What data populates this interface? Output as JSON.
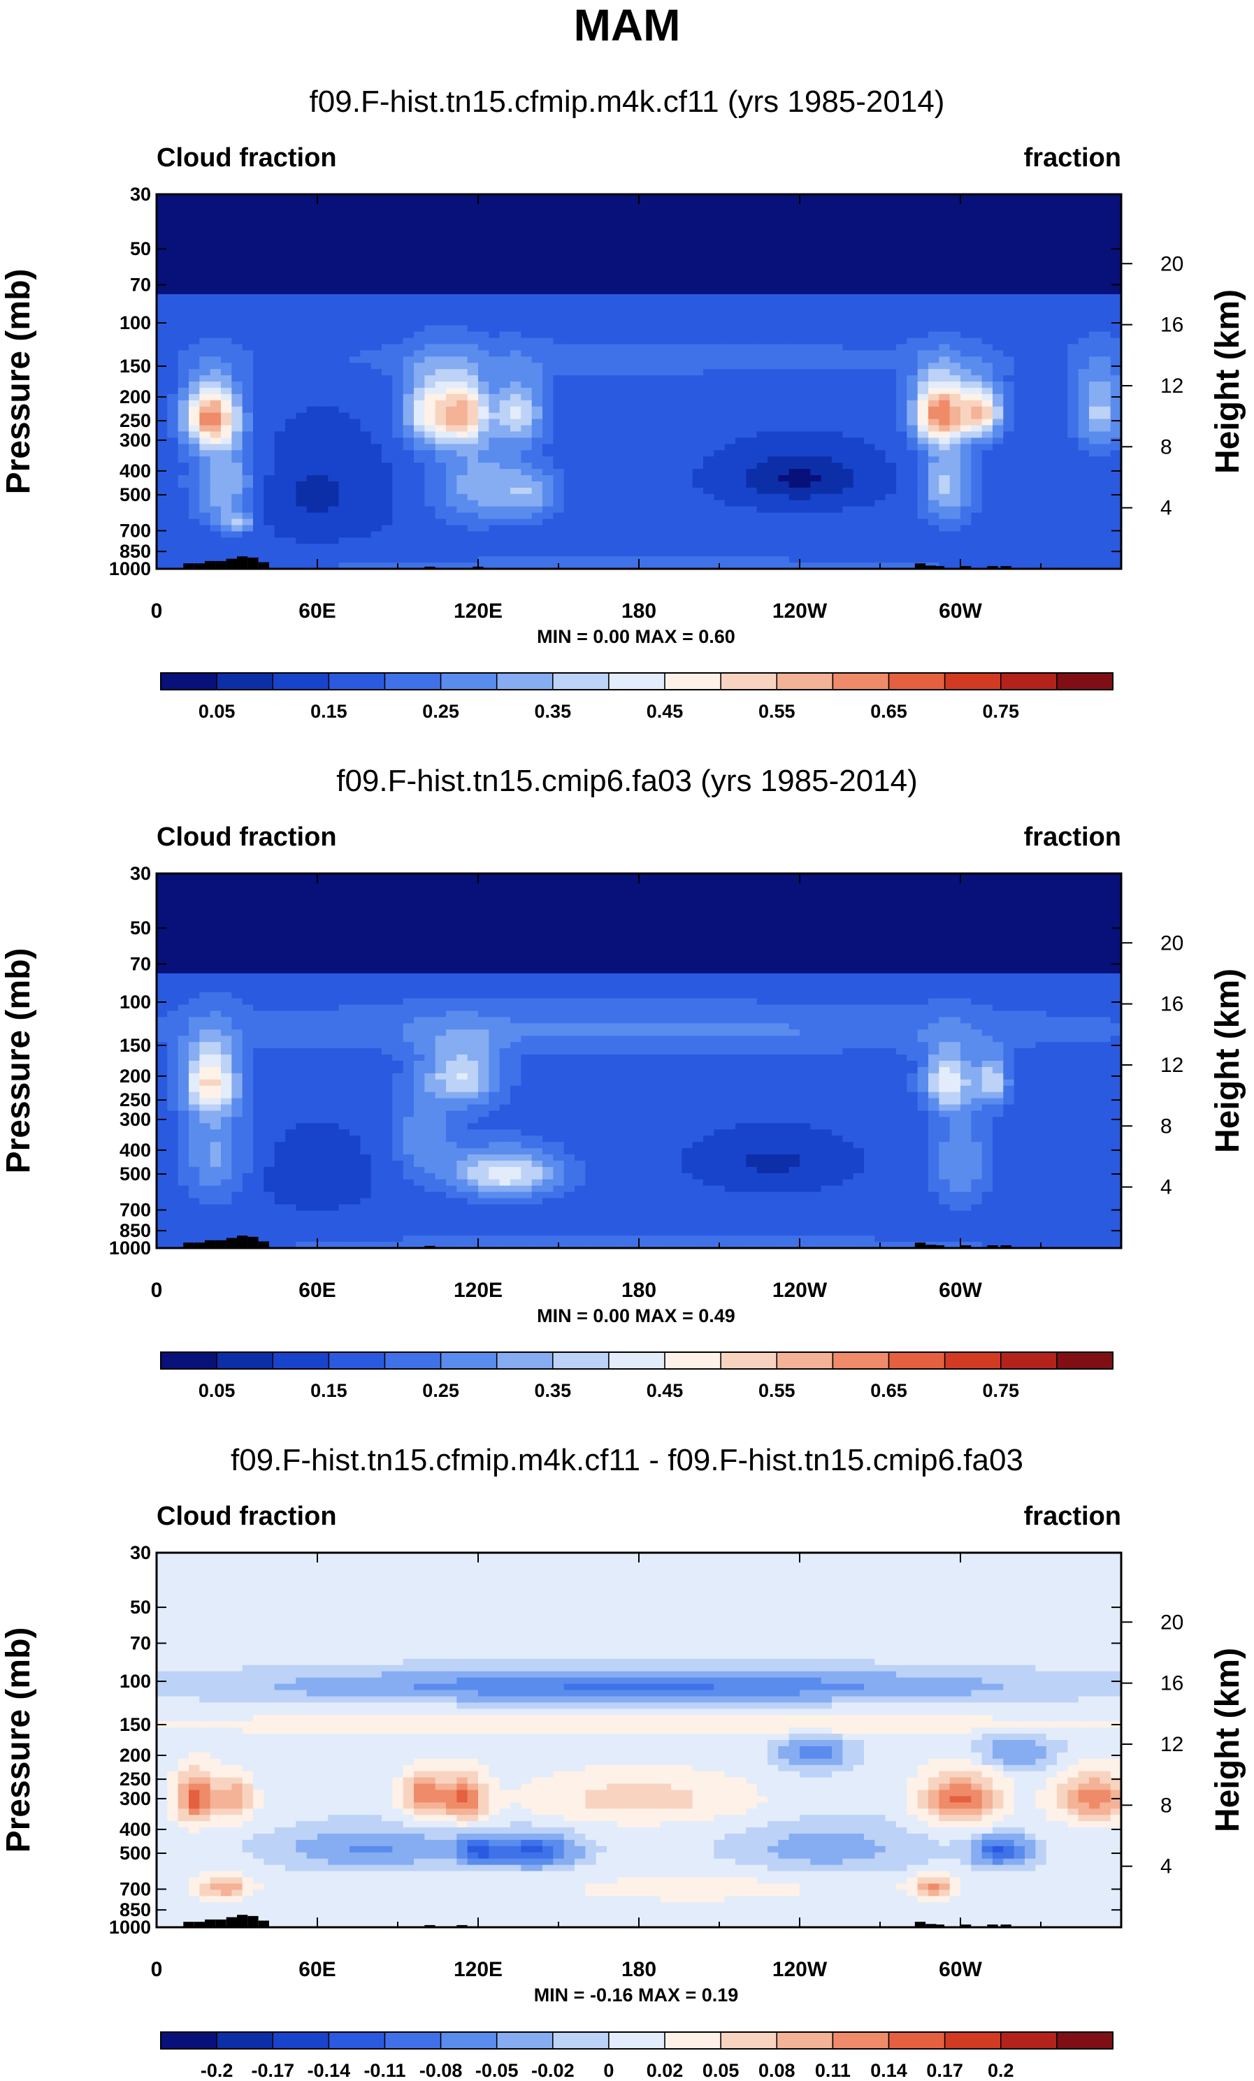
{
  "page_title": "MAM",
  "colormaps": {
    "seq": [
      "#08107a",
      "#0c2fa8",
      "#1844cc",
      "#2a5ae0",
      "#3f72e8",
      "#5a8cee",
      "#86acf2",
      "#bcd2f6",
      "#e3ecfa",
      "#fdf1e8",
      "#f8d4c0",
      "#f4b296",
      "#ef8b68",
      "#e5603f",
      "#d33a22",
      "#b4231b",
      "#7f0f14"
    ],
    "div": [
      "#08107a",
      "#0c2fa8",
      "#1844cc",
      "#2a5ae0",
      "#3f72e8",
      "#5a8cee",
      "#86acf2",
      "#bcd2f6",
      "#e3ecfa",
      "#fdf1e8",
      "#f8d4c0",
      "#f4b296",
      "#ef8b68",
      "#e5603f",
      "#d33a22",
      "#b4231b",
      "#7f0f14"
    ]
  },
  "chart_data": [
    {
      "type": "heatmap",
      "title": "f09.F-hist.tn15.cfmip.m4k.cf11 (yrs 1985-2014)",
      "left_label": "Cloud fraction",
      "right_label": "fraction",
      "ylabel": "Pressure (mb)",
      "ylabel_right": "Height (km)",
      "x_ticks": [
        "0",
        "60E",
        "120E",
        "180",
        "120W",
        "60W"
      ],
      "x_tick_lon": [
        0,
        60,
        120,
        180,
        240,
        300
      ],
      "xlim": [
        0,
        360
      ],
      "y_ticks": [
        "30",
        "50",
        "70",
        "100",
        "150",
        "200",
        "250",
        "300",
        "400",
        "500",
        "700",
        "850",
        "1000"
      ],
      "y_tick_values": [
        30,
        50,
        70,
        100,
        150,
        200,
        250,
        300,
        400,
        500,
        700,
        850,
        1000
      ],
      "ylim": [
        30,
        1000
      ],
      "height_ticks": [
        "20",
        "16",
        "12",
        "8",
        "4"
      ],
      "height_km": [
        20,
        16,
        12,
        8,
        4
      ],
      "minmax_text": "MIN =   0.00   MAX =   0.60",
      "min": 0.0,
      "max": 0.6,
      "colorbar_labels": [
        "0.05",
        "0.15",
        "0.25",
        "0.35",
        "0.45",
        "0.55",
        "0.65",
        "0.75"
      ],
      "colorbar_levels": [
        0.05,
        0.1,
        0.15,
        0.2,
        0.25,
        0.3,
        0.35,
        0.4,
        0.45,
        0.5,
        0.55,
        0.6,
        0.65,
        0.7,
        0.75,
        0.8
      ],
      "colormap": "seq",
      "field": {
        "base": 0.16,
        "blobs": [
          {
            "lon": 20,
            "p": 240,
            "a": 0.42,
            "wl": 10,
            "wp": 70
          },
          {
            "lon": 25,
            "p": 450,
            "a": 0.2,
            "wl": 12,
            "wp": 200
          },
          {
            "lon": 30,
            "p": 650,
            "a": 0.18,
            "wl": 6,
            "wp": 60
          },
          {
            "lon": 102,
            "p": 230,
            "a": 0.3,
            "wl": 10,
            "wp": 80
          },
          {
            "lon": 115,
            "p": 230,
            "a": 0.33,
            "wl": 8,
            "wp": 70
          },
          {
            "lon": 135,
            "p": 230,
            "a": 0.22,
            "wl": 10,
            "wp": 70
          },
          {
            "lon": 120,
            "p": 450,
            "a": 0.16,
            "wl": 18,
            "wp": 200
          },
          {
            "lon": 140,
            "p": 500,
            "a": 0.14,
            "wl": 12,
            "wp": 120
          },
          {
            "lon": 292,
            "p": 230,
            "a": 0.42,
            "wl": 10,
            "wp": 70
          },
          {
            "lon": 308,
            "p": 230,
            "a": 0.35,
            "wl": 8,
            "wp": 60
          },
          {
            "lon": 295,
            "p": 450,
            "a": 0.2,
            "wl": 10,
            "wp": 200
          },
          {
            "lon": 352,
            "p": 230,
            "a": 0.2,
            "wl": 10,
            "wp": 90
          },
          {
            "lon": 240,
            "p": 430,
            "a": -0.12,
            "wl": 25,
            "wp": 100
          },
          {
            "lon": 60,
            "p": 500,
            "a": -0.07,
            "wl": 25,
            "wp": 200
          },
          {
            "lon": 180,
            "p": 950,
            "a": 0.07,
            "wl": 180,
            "wp": 50
          },
          {
            "lon": 180,
            "p": 140,
            "a": 0.06,
            "wl": 180,
            "wp": 30
          }
        ]
      },
      "topography": [
        [
          10,
          950
        ],
        [
          14,
          950
        ],
        [
          18,
          930
        ],
        [
          22,
          930
        ],
        [
          26,
          910
        ],
        [
          30,
          890
        ],
        [
          34,
          900
        ],
        [
          38,
          940
        ],
        [
          100,
          980
        ],
        [
          118,
          980
        ],
        [
          283,
          950
        ],
        [
          287,
          970
        ],
        [
          290,
          975
        ],
        [
          300,
          975
        ],
        [
          310,
          975
        ],
        [
          315,
          975
        ]
      ]
    },
    {
      "type": "heatmap",
      "title": "f09.F-hist.tn15.cmip6.fa03 (yrs 1985-2014)",
      "left_label": "Cloud fraction",
      "right_label": "fraction",
      "ylabel": "Pressure (mb)",
      "ylabel_right": "Height (km)",
      "x_ticks": [
        "0",
        "60E",
        "120E",
        "180",
        "120W",
        "60W"
      ],
      "x_tick_lon": [
        0,
        60,
        120,
        180,
        240,
        300
      ],
      "xlim": [
        0,
        360
      ],
      "y_ticks": [
        "30",
        "50",
        "70",
        "100",
        "150",
        "200",
        "250",
        "300",
        "400",
        "500",
        "700",
        "850",
        "1000"
      ],
      "y_tick_values": [
        30,
        50,
        70,
        100,
        150,
        200,
        250,
        300,
        400,
        500,
        700,
        850,
        1000
      ],
      "ylim": [
        30,
        1000
      ],
      "height_ticks": [
        "20",
        "16",
        "12",
        "8",
        "4"
      ],
      "height_km": [
        20,
        16,
        12,
        8,
        4
      ],
      "minmax_text": "MIN =   0.00   MAX =   0.49",
      "min": 0.0,
      "max": 0.49,
      "colorbar_labels": [
        "0.05",
        "0.15",
        "0.25",
        "0.35",
        "0.45",
        "0.55",
        "0.65",
        "0.75"
      ],
      "colorbar_levels": [
        0.05,
        0.1,
        0.15,
        0.2,
        0.25,
        0.3,
        0.35,
        0.4,
        0.45,
        0.5,
        0.55,
        0.6,
        0.65,
        0.7,
        0.75,
        0.8
      ],
      "colormap": "seq",
      "field": {
        "base": 0.17,
        "blobs": [
          {
            "lon": 20,
            "p": 210,
            "a": 0.3,
            "wl": 10,
            "wp": 70
          },
          {
            "lon": 22,
            "p": 420,
            "a": 0.14,
            "wl": 12,
            "wp": 200
          },
          {
            "lon": 115,
            "p": 200,
            "a": 0.22,
            "wl": 14,
            "wp": 60
          },
          {
            "lon": 130,
            "p": 500,
            "a": 0.27,
            "wl": 20,
            "wp": 110
          },
          {
            "lon": 100,
            "p": 350,
            "a": 0.12,
            "wl": 12,
            "wp": 150
          },
          {
            "lon": 295,
            "p": 210,
            "a": 0.25,
            "wl": 9,
            "wp": 60
          },
          {
            "lon": 312,
            "p": 210,
            "a": 0.22,
            "wl": 6,
            "wp": 50
          },
          {
            "lon": 300,
            "p": 450,
            "a": 0.13,
            "wl": 10,
            "wp": 200
          },
          {
            "lon": 230,
            "p": 450,
            "a": -0.08,
            "wl": 30,
            "wp": 120
          },
          {
            "lon": 60,
            "p": 500,
            "a": -0.05,
            "wl": 25,
            "wp": 200
          },
          {
            "lon": 180,
            "p": 950,
            "a": 0.06,
            "wl": 180,
            "wp": 50
          },
          {
            "lon": 180,
            "p": 130,
            "a": 0.09,
            "wl": 180,
            "wp": 30
          }
        ]
      },
      "topography": [
        [
          10,
          950
        ],
        [
          14,
          950
        ],
        [
          18,
          930
        ],
        [
          22,
          930
        ],
        [
          26,
          910
        ],
        [
          30,
          890
        ],
        [
          34,
          900
        ],
        [
          38,
          940
        ],
        [
          100,
          980
        ],
        [
          283,
          950
        ],
        [
          287,
          970
        ],
        [
          290,
          975
        ],
        [
          300,
          975
        ],
        [
          310,
          975
        ],
        [
          315,
          975
        ]
      ]
    },
    {
      "type": "heatmap",
      "title": "f09.F-hist.tn15.cfmip.m4k.cf11 - f09.F-hist.tn15.cmip6.fa03",
      "left_label": "Cloud fraction",
      "right_label": "fraction",
      "ylabel": "Pressure (mb)",
      "ylabel_right": "Height (km)",
      "x_ticks": [
        "0",
        "60E",
        "120E",
        "180",
        "120W",
        "60W"
      ],
      "x_tick_lon": [
        0,
        60,
        120,
        180,
        240,
        300
      ],
      "xlim": [
        0,
        360
      ],
      "y_ticks": [
        "30",
        "50",
        "70",
        "100",
        "150",
        "200",
        "250",
        "300",
        "400",
        "500",
        "700",
        "850",
        "1000"
      ],
      "y_tick_values": [
        30,
        50,
        70,
        100,
        150,
        200,
        250,
        300,
        400,
        500,
        700,
        850,
        1000
      ],
      "ylim": [
        30,
        1000
      ],
      "height_ticks": [
        "20",
        "16",
        "12",
        "8",
        "4"
      ],
      "height_km": [
        20,
        16,
        12,
        8,
        4
      ],
      "minmax_text": "MIN =  -0.16   MAX =   0.19",
      "min": -0.16,
      "max": 0.19,
      "colorbar_labels": [
        "-0.2",
        "-0.17",
        "-0.14",
        "-0.11",
        "-0.08",
        "-0.05",
        "-0.02",
        "0",
        "0.02",
        "0.05",
        "0.08",
        "0.11",
        "0.14",
        "0.17",
        "0.2"
      ],
      "colorbar_levels": [
        -0.2,
        -0.17,
        -0.14,
        -0.11,
        -0.08,
        -0.05,
        -0.02,
        0,
        0.02,
        0.05,
        0.08,
        0.11,
        0.14,
        0.17,
        0.2
      ],
      "colormap": "div",
      "field": {
        "base": 0.005,
        "blobs": [
          {
            "lon": 180,
            "p": 105,
            "a": -0.09,
            "wl": 120,
            "wp": 14
          },
          {
            "lon": 180,
            "p": 150,
            "a": 0.04,
            "wl": 180,
            "wp": 15
          },
          {
            "lon": 15,
            "p": 300,
            "a": 0.15,
            "wl": 8,
            "wp": 70
          },
          {
            "lon": 30,
            "p": 300,
            "a": 0.1,
            "wl": 6,
            "wp": 60
          },
          {
            "lon": 100,
            "p": 290,
            "a": 0.13,
            "wl": 8,
            "wp": 60
          },
          {
            "lon": 115,
            "p": 300,
            "a": 0.14,
            "wl": 8,
            "wp": 60
          },
          {
            "lon": 180,
            "p": 300,
            "a": 0.06,
            "wl": 40,
            "wp": 70
          },
          {
            "lon": 300,
            "p": 300,
            "a": 0.14,
            "wl": 14,
            "wp": 70
          },
          {
            "lon": 350,
            "p": 300,
            "a": 0.12,
            "wl": 14,
            "wp": 70
          },
          {
            "lon": 80,
            "p": 480,
            "a": -0.06,
            "wl": 30,
            "wp": 80
          },
          {
            "lon": 140,
            "p": 490,
            "a": -0.12,
            "wl": 15,
            "wp": 70
          },
          {
            "lon": 120,
            "p": 490,
            "a": -0.1,
            "wl": 8,
            "wp": 60
          },
          {
            "lon": 315,
            "p": 490,
            "a": -0.12,
            "wl": 10,
            "wp": 60
          },
          {
            "lon": 250,
            "p": 480,
            "a": -0.04,
            "wl": 30,
            "wp": 100
          },
          {
            "lon": 25,
            "p": 690,
            "a": 0.1,
            "wl": 10,
            "wp": 70
          },
          {
            "lon": 290,
            "p": 690,
            "a": 0.11,
            "wl": 8,
            "wp": 70
          },
          {
            "lon": 200,
            "p": 700,
            "a": 0.025,
            "wl": 60,
            "wp": 100
          },
          {
            "lon": 245,
            "p": 195,
            "a": -0.07,
            "wl": 12,
            "wp": 30
          },
          {
            "lon": 320,
            "p": 195,
            "a": -0.05,
            "wl": 15,
            "wp": 30
          }
        ]
      },
      "topography": [
        [
          10,
          950
        ],
        [
          14,
          950
        ],
        [
          18,
          930
        ],
        [
          22,
          930
        ],
        [
          26,
          910
        ],
        [
          30,
          890
        ],
        [
          34,
          900
        ],
        [
          38,
          940
        ],
        [
          100,
          980
        ],
        [
          112,
          980
        ],
        [
          283,
          950
        ],
        [
          287,
          970
        ],
        [
          290,
          975
        ],
        [
          300,
          975
        ],
        [
          310,
          975
        ],
        [
          315,
          975
        ]
      ]
    }
  ]
}
